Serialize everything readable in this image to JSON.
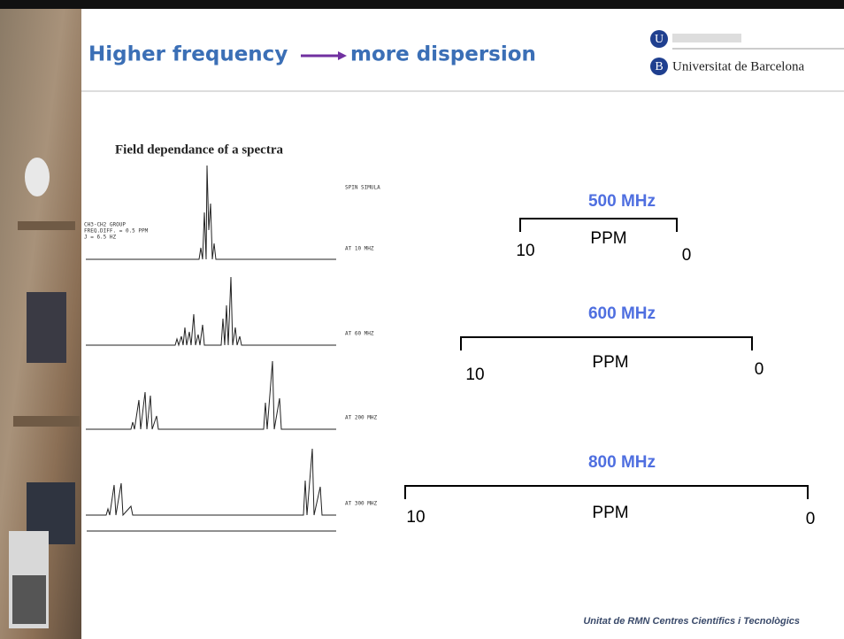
{
  "header": {
    "title_left": "Higher frequency",
    "title_right": "more dispersion",
    "logo": {
      "u": "U",
      "b": "B",
      "name": "Universitat de Barcelona"
    }
  },
  "figure": {
    "title": "Field dependance of a spectra",
    "program": "SPIN SIMULA",
    "notes": [
      "CH3-CH2 GROUP",
      "FREQ.DIFF. = 0.5 PPM",
      "J = 6.5 HZ"
    ],
    "traces": [
      "AT 10 MHZ",
      "AT 60 MHZ",
      "AT 200 MHZ",
      "AT 300 MHZ"
    ]
  },
  "scales": [
    {
      "label": "500 MHz",
      "left": "10",
      "unit": "PPM",
      "right": "0"
    },
    {
      "label": "600 MHz",
      "left": "10",
      "unit": "PPM",
      "right": "0"
    },
    {
      "label": "800 MHz",
      "left": "10",
      "unit": "PPM",
      "right": "0"
    }
  ],
  "footer": "Unitat de RMN  Centres Científics i Tecnològics"
}
